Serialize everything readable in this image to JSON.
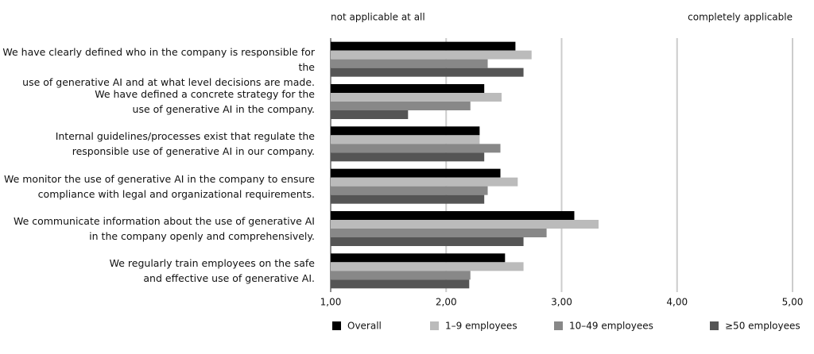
{
  "chart_data": {
    "type": "hbar",
    "annotations": [
      "not applicable at all",
      "completely applicable"
    ],
    "categories": [
      "We have clearly defined who in the company is responsible for the\nuse of generative AI and at what level decisions are made.",
      "We have defined a concrete strategy for the\nuse of generative AI in the company.",
      "Internal guidelines/processes exist that regulate the\nresponsible use of generative AI in our company.",
      "We monitor the use of generative AI in the company to ensure\ncompliance with legal and organizational requirements.",
      "We communicate information about the use of generative AI\nin the company openly and comprehensively.",
      "We regularly train employees on the safe\nand effective use of generative AI."
    ],
    "series": [
      {
        "name": "Overall",
        "color": "#000000",
        "values": [
          2.6,
          2.33,
          2.29,
          2.47,
          3.11,
          2.51
        ]
      },
      {
        "name": "1–9 employees",
        "color": "#bbbbbb",
        "values": [
          2.74,
          2.48,
          2.29,
          2.62,
          3.32,
          2.67
        ]
      },
      {
        "name": "10–49 employees",
        "color": "#888888",
        "values": [
          2.36,
          2.21,
          2.47,
          2.36,
          2.87,
          2.21
        ]
      },
      {
        "name": "≥50 employees",
        "color": "#555555",
        "values": [
          2.67,
          1.67,
          2.33,
          2.33,
          2.67,
          2.2
        ]
      }
    ],
    "xlim": [
      1,
      5
    ],
    "xticks": [
      {
        "value": 1,
        "label": "1,00"
      },
      {
        "value": 2,
        "label": "2,00"
      },
      {
        "value": 3,
        "label": "3,00"
      },
      {
        "value": 4,
        "label": "4,00"
      },
      {
        "value": 5,
        "label": "5,00"
      }
    ],
    "grid": true,
    "legend": "bottom"
  }
}
